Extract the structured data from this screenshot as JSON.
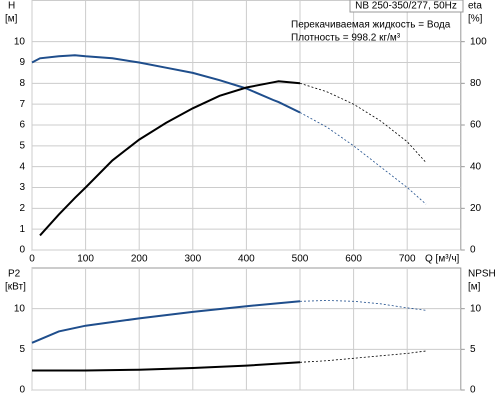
{
  "chart_data": [
    {
      "type": "line",
      "annotations": [
        "NB 250-350/277, 50Hz",
        "Перекачиваемая жидкость = Вода",
        "Плотность = 998.2 кг/м³"
      ],
      "xlabel": "Q [м³/ч]",
      "ylabel": "H",
      "yunit": "[м]",
      "y2label": "eta",
      "y2unit": "[%]",
      "x": [
        0,
        15,
        50,
        80,
        100,
        150,
        200,
        250,
        300,
        350,
        400,
        450,
        460,
        500,
        550,
        600,
        650,
        700,
        735
      ],
      "xlim": [
        0,
        800
      ],
      "xticks": [
        0,
        100,
        200,
        300,
        400,
        500,
        600,
        700
      ],
      "ylim": [
        0,
        12
      ],
      "yticks": [
        0,
        1,
        2,
        3,
        4,
        5,
        6,
        7,
        8,
        9,
        10
      ],
      "y2lim": [
        0,
        120
      ],
      "y2ticks": [
        0,
        20,
        40,
        60,
        80,
        100
      ],
      "grid": true,
      "series": [
        {
          "color": "#1f4e8c",
          "style": "solid",
          "values": [
            9.0,
            9.2,
            9.3,
            9.35,
            9.3,
            9.2,
            9.0,
            8.75,
            8.5,
            8.15,
            7.75,
            7.2,
            7.1,
            6.6,
            null,
            null,
            null,
            null,
            null
          ]
        },
        {
          "color": "#1f4e8c",
          "style": "dashed",
          "values": [
            null,
            null,
            null,
            null,
            null,
            null,
            null,
            null,
            null,
            null,
            null,
            null,
            null,
            6.6,
            5.9,
            5.0,
            4.0,
            3.0,
            2.2
          ]
        },
        {
          "color": "#000000",
          "style": "solid",
          "axis": "y2",
          "values": [
            null,
            7,
            17,
            25,
            30,
            43,
            53,
            61,
            68,
            74,
            78,
            80.5,
            81,
            80,
            null,
            null,
            null,
            null,
            null
          ]
        },
        {
          "color": "#000000",
          "style": "dashed",
          "axis": "y2",
          "values": [
            null,
            null,
            null,
            null,
            null,
            null,
            null,
            null,
            null,
            null,
            null,
            null,
            null,
            80,
            76,
            70,
            62,
            52,
            42
          ]
        }
      ]
    },
    {
      "type": "line",
      "ylabel": "P2",
      "yunit": "[кВт]",
      "y2label": "NPSH",
      "y2unit": "[м]",
      "x": [
        0,
        50,
        100,
        200,
        300,
        400,
        500,
        550,
        600,
        650,
        700,
        735
      ],
      "xlim": [
        0,
        800
      ],
      "ylim": [
        0,
        15
      ],
      "yticks": [
        0,
        5,
        10
      ],
      "y2lim": [
        0,
        15
      ],
      "y2ticks": [
        0,
        5,
        10
      ],
      "grid": true,
      "series": [
        {
          "color": "#1f4e8c",
          "style": "solid",
          "values": [
            5.8,
            7.2,
            7.9,
            8.8,
            9.6,
            10.3,
            10.9,
            null,
            null,
            null,
            null,
            null
          ]
        },
        {
          "color": "#1f4e8c",
          "style": "dashed",
          "values": [
            null,
            null,
            null,
            null,
            null,
            null,
            10.9,
            11.0,
            10.9,
            10.6,
            10.1,
            9.8
          ]
        },
        {
          "color": "#000000",
          "style": "solid",
          "axis": "y2",
          "values": [
            2.4,
            2.4,
            2.4,
            2.5,
            2.7,
            3.0,
            3.4,
            null,
            null,
            null,
            null,
            null
          ]
        },
        {
          "color": "#000000",
          "style": "dashed",
          "axis": "y2",
          "values": [
            null,
            null,
            null,
            null,
            null,
            null,
            3.4,
            3.6,
            3.9,
            4.2,
            4.5,
            4.8
          ]
        }
      ]
    }
  ]
}
